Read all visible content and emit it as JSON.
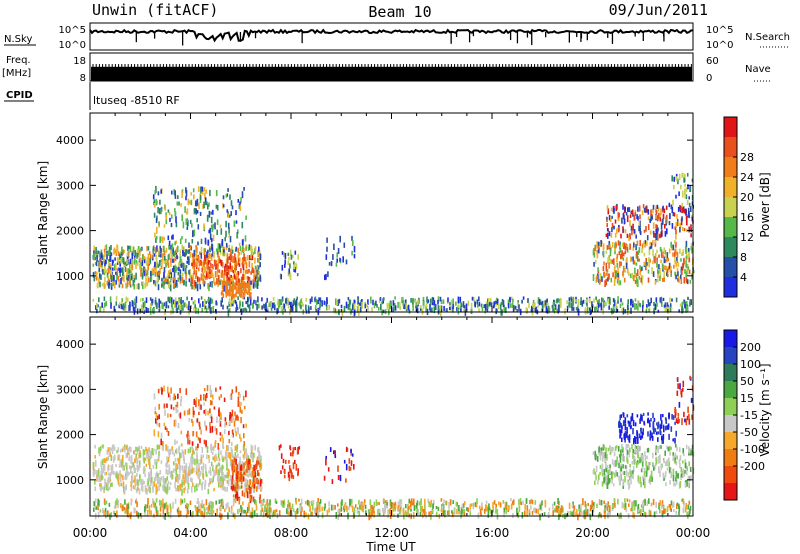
{
  "header": {
    "station": "Unwin (fitACF)",
    "beam": "Beam 10",
    "date": "09/Jun/2011"
  },
  "left_labels": {
    "nsky": "N.Sky",
    "freq": "Freq.",
    "freq_unit": "[MHz]",
    "cpid": "CPID"
  },
  "right_labels": {
    "nsearch": "N.Search",
    "nave": "Nave"
  },
  "cpid_text": "ltuseq -8510 RF",
  "colors": {
    "power": [
      "#1f2fe0",
      "#2650a8",
      "#2e8a5e",
      "#57b84a",
      "#c8d250",
      "#f0b12a",
      "#f07d1a",
      "#e8501c",
      "#e01616"
    ],
    "velocity": [
      "#e61616",
      "#f04a10",
      "#f07d14",
      "#f5a82c",
      "#c8c8c8",
      "#8dd055",
      "#4aa840",
      "#2e7a5a",
      "#2844c0",
      "#1a1ae6"
    ]
  },
  "chart_data": [
    {
      "type": "bar",
      "name": "noise-panel",
      "labels": {
        "left": "N.Sky",
        "right": "N.Search"
      },
      "yticks_left": [
        "10^5",
        "10^0"
      ],
      "yticks_right": [
        "10^5",
        "10^0"
      ]
    },
    {
      "type": "bar",
      "name": "freq-nave-panel",
      "yticks_left": [
        "18",
        "8"
      ],
      "yticks_right": [
        "60",
        "0"
      ],
      "freq_range": [
        8,
        18
      ],
      "nave_range": [
        0,
        60
      ],
      "freq_value": 12
    },
    {
      "type": "heatmap",
      "name": "power-panel",
      "ylabel": "Slant Range [km]",
      "yticks": [
        1000,
        2000,
        3000,
        4000
      ],
      "ylim": [
        200,
        4600
      ],
      "xlim": [
        0,
        24
      ],
      "colorbar": {
        "label": "Power [dB]",
        "ticks": [
          4,
          8,
          12,
          16,
          20,
          24,
          28
        ]
      }
    },
    {
      "type": "heatmap",
      "name": "velocity-panel",
      "ylabel": "Slant Range [km]",
      "xlabel": "Time UT",
      "yticks": [
        1000,
        2000,
        3000,
        4000
      ],
      "ylim": [
        200,
        4600
      ],
      "xlim": [
        0,
        24
      ],
      "xticks": [
        "00:00",
        "04:00",
        "08:00",
        "12:00",
        "16:00",
        "20:00",
        "00:00"
      ],
      "colorbar": {
        "label": "Velocity [m s⁻¹]",
        "ticks": [
          200,
          100,
          50,
          15,
          -15,
          -50,
          -100,
          -200
        ]
      }
    }
  ]
}
